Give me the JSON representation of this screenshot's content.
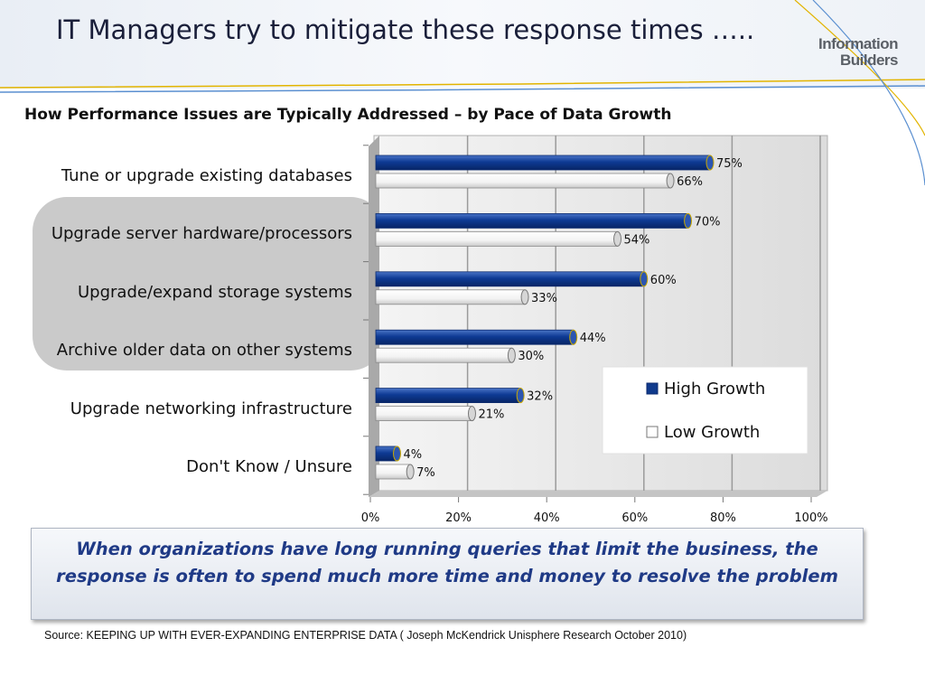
{
  "slide": {
    "title": "IT Managers try to mitigate these response times …..",
    "logo_line1": "Information",
    "logo_line2": "Builders",
    "callout": "When organizations have long running queries that limit the business, the response is often to spend much more time and money to resolve the problem",
    "source": "Source: KEEPING UP WITH EVER-EXPANDING ENTERPRISE DATA ( Joseph McKendrick  Unisphere Research October 2010)"
  },
  "colors": {
    "high_growth": "#103a8c",
    "low_growth": "#ffffff",
    "title_text": "#1a1f3a",
    "callout_text": "#1f3a86"
  },
  "chart_data": {
    "type": "bar",
    "orientation": "horizontal",
    "title": "How Performance Issues are Typically Addressed – by Pace of Data Growth",
    "categories": [
      "Tune or upgrade existing databases",
      "Upgrade server hardware/processors",
      "Upgrade/expand storage systems",
      "Archive older data on other systems",
      "Upgrade networking infrastructure",
      "Don't Know / Unsure"
    ],
    "series": [
      {
        "name": "High Growth",
        "values": [
          75,
          70,
          60,
          44,
          32,
          4
        ],
        "labels": [
          "75%",
          "70%",
          "60%",
          "44%",
          "32%",
          "4%"
        ]
      },
      {
        "name": "Low Growth",
        "values": [
          66,
          54,
          33,
          30,
          21,
          7
        ],
        "labels": [
          "66%",
          "54%",
          "33%",
          "30%",
          "21%",
          "7%"
        ]
      }
    ],
    "xlim": [
      0,
      100
    ],
    "xticks": [
      0,
      20,
      40,
      60,
      80,
      100
    ],
    "xtick_labels": [
      "0%",
      "20%",
      "40%",
      "60%",
      "80%",
      "100%"
    ],
    "grid": true,
    "legend_position": "lower-right"
  }
}
